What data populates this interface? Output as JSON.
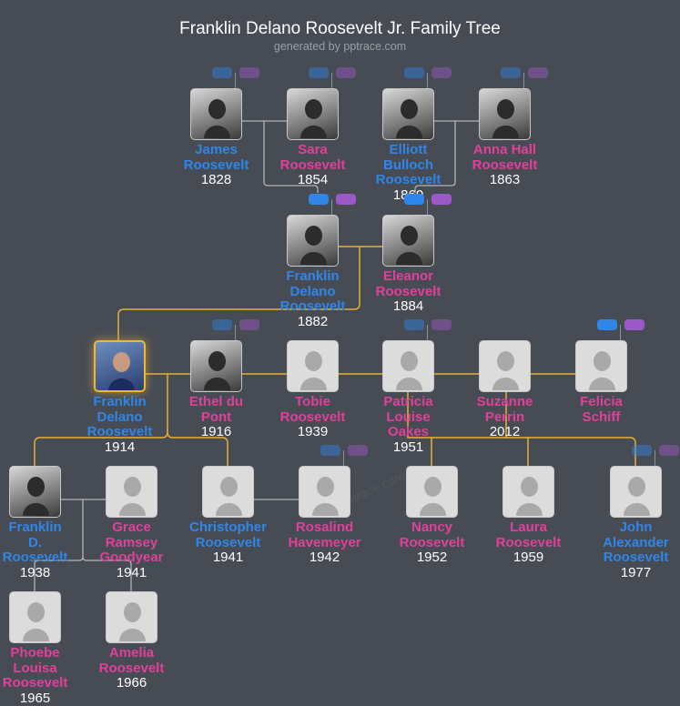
{
  "header": {
    "title": "Franklin Delano Roosevelt Jr. Family Tree",
    "subtitle": "generated by pptrace.com"
  },
  "watermark": "pptrace.com",
  "colors": {
    "male": "#2f86e8",
    "female": "#e0409a",
    "descendant_line": "#e8b030",
    "ancestor_line": "#b0b4ba",
    "background": "#474c54"
  },
  "people": [
    {
      "id": "james",
      "name": [
        "James",
        "Roosevelt"
      ],
      "year": "1828",
      "gender": "m",
      "photo": true,
      "toggles": "dim"
    },
    {
      "id": "sara",
      "name": [
        "Sara",
        "Roosevelt"
      ],
      "year": "1854",
      "gender": "f",
      "photo": true,
      "toggles": "dim"
    },
    {
      "id": "elliott",
      "name": [
        "Elliott",
        "Bulloch",
        "Roosevelt"
      ],
      "year": "1860",
      "gender": "m",
      "photo": true,
      "toggles": "dim"
    },
    {
      "id": "anna",
      "name": [
        "Anna Hall",
        "Roosevelt"
      ],
      "year": "1863",
      "gender": "f",
      "photo": true,
      "toggles": "dim"
    },
    {
      "id": "fdr",
      "name": [
        "Franklin",
        "Delano",
        "Roosevelt"
      ],
      "year": "1882",
      "gender": "m",
      "photo": true,
      "toggles": "bright"
    },
    {
      "id": "eleanor",
      "name": [
        "Eleanor",
        "Roosevelt"
      ],
      "year": "1884",
      "gender": "f",
      "photo": true,
      "toggles": "bright"
    },
    {
      "id": "fdrjr",
      "name": [
        "Franklin",
        "Delano",
        "Roosevelt"
      ],
      "year": "1914",
      "gender": "m",
      "photo": true,
      "selected": true
    },
    {
      "id": "ethel",
      "name": [
        "Ethel du",
        "Pont"
      ],
      "year": "1916",
      "gender": "f",
      "photo": true,
      "toggles": "dim"
    },
    {
      "id": "tobie",
      "name": [
        "Tobie",
        "Roosevelt"
      ],
      "year": "1939",
      "gender": "f"
    },
    {
      "id": "patricia",
      "name": [
        "Patricia",
        "Louise",
        "Oakes"
      ],
      "year": "1951",
      "gender": "f",
      "toggles": "dim"
    },
    {
      "id": "suzanne",
      "name": [
        "Suzanne",
        "Perrin"
      ],
      "year": "2012",
      "gender": "f"
    },
    {
      "id": "felicia",
      "name": [
        "Felicia",
        "Schiff"
      ],
      "year": "",
      "gender": "f",
      "toggles": "bright"
    },
    {
      "id": "fdr3",
      "name": [
        "Franklin",
        "D.",
        "Roosevelt"
      ],
      "year": "1938",
      "gender": "m",
      "photo": true
    },
    {
      "id": "grace",
      "name": [
        "Grace",
        "Ramsey",
        "Goodyear"
      ],
      "year": "1941",
      "gender": "f"
    },
    {
      "id": "christopher",
      "name": [
        "Christopher",
        "Roosevelt"
      ],
      "year": "1941",
      "gender": "m"
    },
    {
      "id": "rosalind",
      "name": [
        "Rosalind",
        "Havemeyer"
      ],
      "year": "1942",
      "gender": "f",
      "toggles": "dim"
    },
    {
      "id": "nancy",
      "name": [
        "Nancy",
        "Roosevelt"
      ],
      "year": "1952",
      "gender": "f"
    },
    {
      "id": "laura",
      "name": [
        "Laura",
        "Roosevelt"
      ],
      "year": "1959",
      "gender": "f"
    },
    {
      "id": "john",
      "name": [
        "John",
        "Alexander",
        "Roosevelt"
      ],
      "year": "1977",
      "gender": "m",
      "toggles": "dim"
    },
    {
      "id": "phoebe",
      "name": [
        "Phoebe",
        "Louisa",
        "Roosevelt"
      ],
      "year": "1965",
      "gender": "f"
    },
    {
      "id": "amelia",
      "name": [
        "Amelia",
        "Roosevelt"
      ],
      "year": "1966",
      "gender": "f"
    }
  ]
}
